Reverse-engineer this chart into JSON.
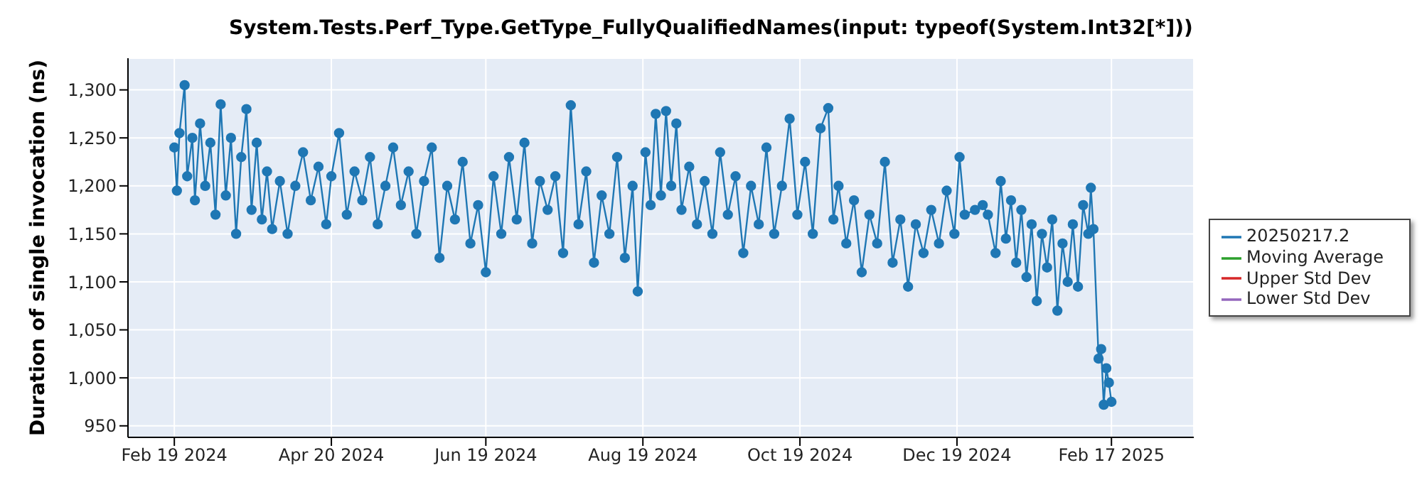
{
  "chart_data": {
    "type": "line",
    "title": "System.Tests.Perf_Type.GetType_FullyQualifiedNames(input: typeof(System.Int32[*]))",
    "ylabel": "Duration of single invocation (ns)",
    "x": [
      "2024-02-19",
      "2024-02-20",
      "2024-02-21",
      "2024-02-23",
      "2024-02-24",
      "2024-02-26",
      "2024-02-27",
      "2024-02-29",
      "2024-03-02",
      "2024-03-04",
      "2024-03-06",
      "2024-03-08",
      "2024-03-10",
      "2024-03-12",
      "2024-03-14",
      "2024-03-16",
      "2024-03-18",
      "2024-03-20",
      "2024-03-22",
      "2024-03-24",
      "2024-03-26",
      "2024-03-28",
      "2024-03-31",
      "2024-04-03",
      "2024-04-06",
      "2024-04-09",
      "2024-04-12",
      "2024-04-15",
      "2024-04-18",
      "2024-04-20",
      "2024-04-23",
      "2024-04-26",
      "2024-04-29",
      "2024-05-02",
      "2024-05-05",
      "2024-05-08",
      "2024-05-11",
      "2024-05-14",
      "2024-05-17",
      "2024-05-20",
      "2024-05-23",
      "2024-05-26",
      "2024-05-29",
      "2024-06-01",
      "2024-06-04",
      "2024-06-07",
      "2024-06-10",
      "2024-06-13",
      "2024-06-16",
      "2024-06-19",
      "2024-06-22",
      "2024-06-25",
      "2024-06-28",
      "2024-07-01",
      "2024-07-04",
      "2024-07-07",
      "2024-07-10",
      "2024-07-13",
      "2024-07-16",
      "2024-07-19",
      "2024-07-22",
      "2024-07-25",
      "2024-07-28",
      "2024-07-31",
      "2024-08-03",
      "2024-08-06",
      "2024-08-09",
      "2024-08-12",
      "2024-08-15",
      "2024-08-17",
      "2024-08-20",
      "2024-08-22",
      "2024-08-24",
      "2024-08-26",
      "2024-08-28",
      "2024-08-30",
      "2024-09-01",
      "2024-09-03",
      "2024-09-06",
      "2024-09-09",
      "2024-09-12",
      "2024-09-15",
      "2024-09-18",
      "2024-09-21",
      "2024-09-24",
      "2024-09-27",
      "2024-09-30",
      "2024-10-03",
      "2024-10-06",
      "2024-10-09",
      "2024-10-12",
      "2024-10-15",
      "2024-10-18",
      "2024-10-21",
      "2024-10-24",
      "2024-10-27",
      "2024-10-30",
      "2024-11-01",
      "2024-11-03",
      "2024-11-06",
      "2024-11-09",
      "2024-11-12",
      "2024-11-15",
      "2024-11-18",
      "2024-11-21",
      "2024-11-24",
      "2024-11-27",
      "2024-11-30",
      "2024-12-03",
      "2024-12-06",
      "2024-12-09",
      "2024-12-12",
      "2024-12-15",
      "2024-12-18",
      "2024-12-20",
      "2024-12-22",
      "2024-12-26",
      "2024-12-29",
      "2024-12-31",
      "2025-01-03",
      "2025-01-05",
      "2025-01-07",
      "2025-01-09",
      "2025-01-11",
      "2025-01-13",
      "2025-01-15",
      "2025-01-17",
      "2025-01-19",
      "2025-01-21",
      "2025-01-23",
      "2025-01-25",
      "2025-01-27",
      "2025-01-29",
      "2025-01-31",
      "2025-02-02",
      "2025-02-04",
      "2025-02-06",
      "2025-02-08",
      "2025-02-09",
      "2025-02-10",
      "2025-02-12",
      "2025-02-13",
      "2025-02-14",
      "2025-02-15",
      "2025-02-16",
      "2025-02-17"
    ],
    "series": [
      {
        "name": "20250217.2",
        "color": "#1f77b4",
        "values": [
          1240,
          1195,
          1255,
          1305,
          1210,
          1250,
          1185,
          1265,
          1200,
          1245,
          1170,
          1285,
          1190,
          1250,
          1150,
          1230,
          1280,
          1175,
          1245,
          1165,
          1215,
          1155,
          1205,
          1150,
          1200,
          1235,
          1185,
          1220,
          1160,
          1210,
          1255,
          1170,
          1215,
          1185,
          1230,
          1160,
          1200,
          1240,
          1180,
          1215,
          1150,
          1205,
          1240,
          1125,
          1200,
          1165,
          1225,
          1140,
          1180,
          1110,
          1210,
          1150,
          1230,
          1165,
          1245,
          1140,
          1205,
          1175,
          1210,
          1130,
          1284,
          1160,
          1215,
          1120,
          1190,
          1150,
          1230,
          1125,
          1200,
          1090,
          1235,
          1180,
          1275,
          1190,
          1278,
          1200,
          1265,
          1175,
          1220,
          1160,
          1205,
          1150,
          1235,
          1170,
          1210,
          1130,
          1200,
          1160,
          1240,
          1150,
          1200,
          1270,
          1170,
          1225,
          1150,
          1260,
          1281,
          1165,
          1200,
          1140,
          1185,
          1110,
          1170,
          1140,
          1225,
          1120,
          1165,
          1095,
          1160,
          1130,
          1175,
          1140,
          1195,
          1150,
          1230,
          1170,
          1175,
          1180,
          1170,
          1130,
          1205,
          1145,
          1185,
          1120,
          1175,
          1105,
          1160,
          1080,
          1150,
          1115,
          1165,
          1070,
          1140,
          1100,
          1160,
          1095,
          1180,
          1150,
          1198,
          1155,
          1020,
          1030,
          972,
          1010,
          995,
          975
        ]
      },
      {
        "name": "Moving Average",
        "color": "#2ca02c",
        "values": [
          null,
          null,
          null,
          null,
          null,
          null,
          null,
          null,
          null,
          null,
          null,
          null,
          null,
          null,
          null,
          null,
          null,
          null,
          null,
          null,
          null,
          null,
          null,
          null,
          null,
          null,
          null,
          null,
          null,
          null,
          null,
          null,
          null,
          null,
          null,
          null,
          null,
          null,
          null,
          null,
          null,
          null,
          null,
          null,
          null,
          null,
          null,
          null,
          null,
          null,
          null,
          null,
          null,
          null,
          null,
          null,
          null,
          null,
          null,
          null,
          null,
          null,
          null,
          null,
          null,
          null,
          null,
          null,
          null,
          null,
          null,
          null,
          null,
          null,
          null,
          null,
          null,
          null,
          null,
          null,
          null,
          null,
          null,
          null,
          null,
          null,
          null,
          null,
          null,
          null,
          null,
          null,
          null,
          null,
          null,
          null,
          null,
          null,
          null,
          null,
          null,
          null,
          null,
          null,
          null,
          null,
          null,
          null,
          null,
          null,
          null,
          null,
          null,
          null,
          null,
          null,
          null,
          null,
          null,
          null,
          null,
          null,
          null,
          null,
          null,
          null,
          null,
          null,
          null,
          null,
          null,
          null,
          null,
          null,
          null,
          null,
          null,
          null,
          null,
          null,
          null,
          null,
          null,
          null,
          null,
          null
        ]
      },
      {
        "name": "Upper Std Dev",
        "color": "#d62728",
        "values": [
          null,
          null,
          null,
          null,
          null,
          null,
          null,
          null,
          null,
          null,
          null,
          null,
          null,
          null,
          null,
          null,
          null,
          null,
          null,
          null,
          null,
          null,
          null,
          null,
          null,
          null,
          null,
          null,
          null,
          null,
          null,
          null,
          null,
          null,
          null,
          null,
          null,
          null,
          null,
          null,
          null,
          null,
          null,
          null,
          null,
          null,
          null,
          null,
          null,
          null,
          null,
          null,
          null,
          null,
          null,
          null,
          null,
          null,
          null,
          null,
          null,
          null,
          null,
          null,
          null,
          null,
          null,
          null,
          null,
          null,
          null,
          null,
          null,
          null,
          null,
          null,
          null,
          null,
          null,
          null,
          null,
          null,
          null,
          null,
          null,
          null,
          null,
          null,
          null,
          null,
          null,
          null,
          null,
          null,
          null,
          null,
          null,
          null,
          null,
          null,
          null,
          null,
          null,
          null,
          null,
          null,
          null,
          null,
          null,
          null,
          null,
          null,
          null,
          null,
          null,
          null,
          null,
          null,
          null,
          null,
          null,
          null,
          null,
          null,
          null,
          null,
          null,
          null,
          null,
          null,
          null,
          null,
          null,
          null,
          null,
          null,
          null,
          null,
          null,
          null,
          null,
          null,
          null,
          null,
          null,
          null
        ]
      },
      {
        "name": "Lower Std Dev",
        "color": "#9467bd",
        "values": [
          null,
          null,
          null,
          null,
          null,
          null,
          null,
          null,
          null,
          null,
          null,
          null,
          null,
          null,
          null,
          null,
          null,
          null,
          null,
          null,
          null,
          null,
          null,
          null,
          null,
          null,
          null,
          null,
          null,
          null,
          null,
          null,
          null,
          null,
          null,
          null,
          null,
          null,
          null,
          null,
          null,
          null,
          null,
          null,
          null,
          null,
          null,
          null,
          null,
          null,
          null,
          null,
          null,
          null,
          null,
          null,
          null,
          null,
          null,
          null,
          null,
          null,
          null,
          null,
          null,
          null,
          null,
          null,
          null,
          null,
          null,
          null,
          null,
          null,
          null,
          null,
          null,
          null,
          null,
          null,
          null,
          null,
          null,
          null,
          null,
          null,
          null,
          null,
          null,
          null,
          null,
          null,
          null,
          null,
          null,
          null,
          null,
          null,
          null,
          null,
          null,
          null,
          null,
          null,
          null,
          null,
          null,
          null,
          null,
          null,
          null,
          null,
          null,
          null,
          null,
          null,
          null,
          null,
          null,
          null,
          null,
          null,
          null,
          null,
          null,
          null,
          null,
          null,
          null,
          null,
          null,
          null,
          null,
          null,
          null,
          null,
          null,
          null,
          null,
          null,
          null,
          null,
          null,
          null,
          null,
          null
        ]
      }
    ],
    "xlim": [
      "2024-02-01",
      "2025-03-21"
    ],
    "xticks": [
      {
        "value": "2024-02-19",
        "label": "Feb 19 2024"
      },
      {
        "value": "2024-04-20",
        "label": "Apr 20 2024"
      },
      {
        "value": "2024-06-19",
        "label": "Jun 19 2024"
      },
      {
        "value": "2024-08-19",
        "label": "Aug 19 2024"
      },
      {
        "value": "2024-10-19",
        "label": "Oct 19 2024"
      },
      {
        "value": "2024-12-19",
        "label": "Dec 19 2024"
      },
      {
        "value": "2025-02-17",
        "label": "Feb 17 2025"
      }
    ],
    "ylim": [
      938,
      1333
    ],
    "yticks": [
      {
        "value": 950,
        "label": "950"
      },
      {
        "value": 1000,
        "label": "1,000"
      },
      {
        "value": 1050,
        "label": "1,050"
      },
      {
        "value": 1100,
        "label": "1,100"
      },
      {
        "value": 1150,
        "label": "1,150"
      },
      {
        "value": 1200,
        "label": "1,200"
      },
      {
        "value": 1250,
        "label": "1,250"
      },
      {
        "value": 1300,
        "label": "1,300"
      }
    ],
    "grid": true,
    "legend": "right",
    "marker": "circle",
    "line_style": "solid"
  }
}
